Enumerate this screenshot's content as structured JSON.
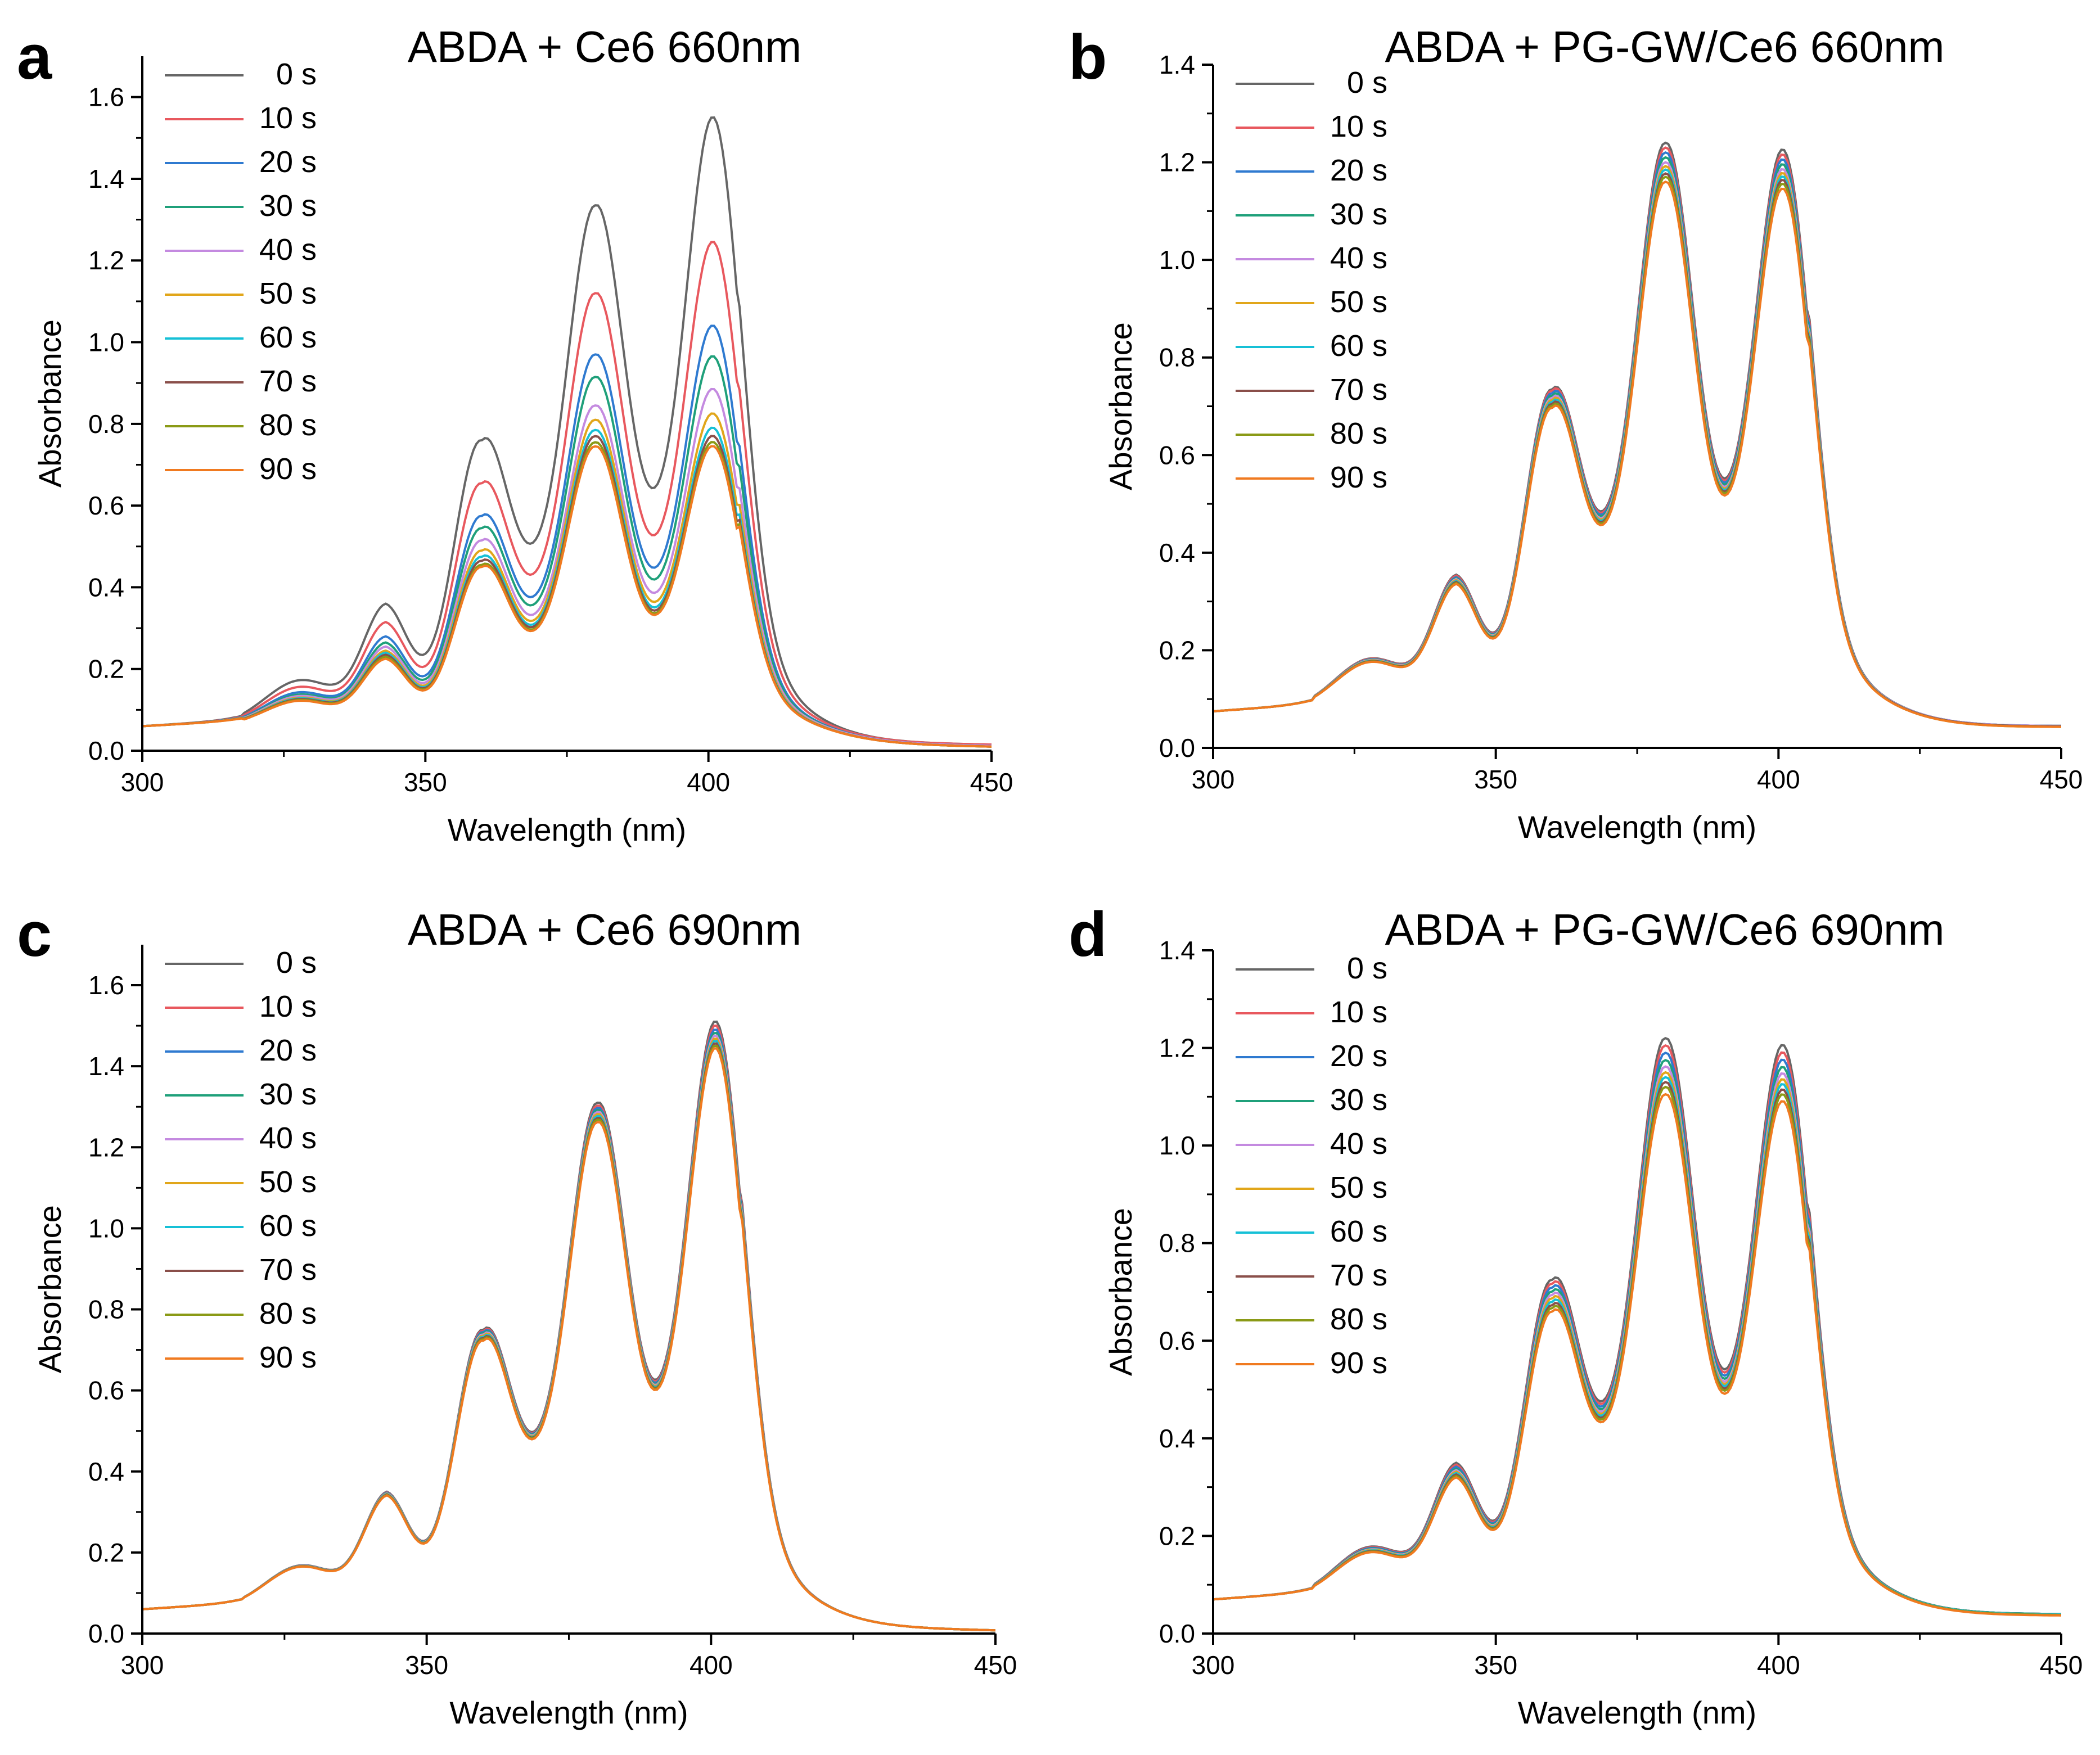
{
  "chart_data": [
    {
      "type": "line",
      "panel_label": "a",
      "title": "ABDA + Ce6 660nm",
      "xlabel": "Wavelength (nm)",
      "ylabel": "Absorbance",
      "xlim": [
        300,
        450
      ],
      "ylim": [
        0,
        1.7
      ],
      "xticks": [
        300,
        350,
        400,
        450
      ],
      "yticks": [
        0.0,
        0.2,
        0.4,
        0.6,
        0.8,
        1.0,
        1.2,
        1.4,
        1.6
      ],
      "ytick_labels": [
        "0.0",
        "0.2",
        "0.4",
        "0.6",
        "0.8",
        "1.0",
        "1.2",
        "1.4",
        "1.6"
      ],
      "legend_position": "top-left",
      "peak_wavelengths": [
        343,
        360,
        380,
        401
      ],
      "series": [
        {
          "name": "0 s",
          "color": "#666666",
          "peaks": [
            0.36,
            0.76,
            1.335,
            1.55
          ],
          "tail": 0.06,
          "end": 0.015
        },
        {
          "name": "10 s",
          "color": "#e8585e",
          "peaks": [
            0.315,
            0.655,
            1.12,
            1.245
          ],
          "tail": 0.06,
          "end": 0.015
        },
        {
          "name": "20 s",
          "color": "#2f7ad0",
          "peaks": [
            0.28,
            0.575,
            0.97,
            1.04
          ],
          "tail": 0.06,
          "end": 0.012
        },
        {
          "name": "30 s",
          "color": "#1fa07a",
          "peaks": [
            0.265,
            0.545,
            0.915,
            0.965
          ],
          "tail": 0.06,
          "end": 0.012
        },
        {
          "name": "40 s",
          "color": "#c48ae0",
          "peaks": [
            0.255,
            0.515,
            0.845,
            0.885
          ],
          "tail": 0.06,
          "end": 0.012
        },
        {
          "name": "50 s",
          "color": "#e1a61a",
          "peaks": [
            0.245,
            0.49,
            0.81,
            0.825
          ],
          "tail": 0.06,
          "end": 0.01
        },
        {
          "name": "60 s",
          "color": "#16c0d6",
          "peaks": [
            0.24,
            0.475,
            0.785,
            0.79
          ],
          "tail": 0.06,
          "end": 0.01
        },
        {
          "name": "70 s",
          "color": "#8a4f4a",
          "peaks": [
            0.235,
            0.465,
            0.77,
            0.77
          ],
          "tail": 0.06,
          "end": 0.01
        },
        {
          "name": "80 s",
          "color": "#8a9a16",
          "peaks": [
            0.23,
            0.455,
            0.755,
            0.755
          ],
          "tail": 0.06,
          "end": 0.01
        },
        {
          "name": "90 s",
          "color": "#f07a20",
          "peaks": [
            0.225,
            0.45,
            0.745,
            0.745
          ],
          "tail": 0.06,
          "end": 0.01
        }
      ]
    },
    {
      "type": "line",
      "panel_label": "b",
      "title": "ABDA + PG-GW/Ce6 660nm",
      "xlabel": "Wavelength (nm)",
      "ylabel": "Absorbance",
      "xlim": [
        300,
        450
      ],
      "ylim": [
        0,
        1.4
      ],
      "xticks": [
        300,
        350,
        400,
        450
      ],
      "yticks": [
        0.0,
        0.2,
        0.4,
        0.6,
        0.8,
        1.0,
        1.2,
        1.4
      ],
      "ytick_labels": [
        "0.0",
        "0.2",
        "0.4",
        "0.6",
        "0.8",
        "1.0",
        "1.2",
        "1.4"
      ],
      "legend_position": "top-left",
      "peak_wavelengths": [
        343,
        360,
        380,
        401
      ],
      "series": [
        {
          "name": "0 s",
          "color": "#666666",
          "peaks": [
            0.355,
            0.735,
            1.24,
            1.225
          ],
          "tail": 0.075,
          "end": 0.045
        },
        {
          "name": "10 s",
          "color": "#e8585e",
          "peaks": [
            0.353,
            0.732,
            1.23,
            1.215
          ],
          "tail": 0.075,
          "end": 0.045
        },
        {
          "name": "20 s",
          "color": "#2f7ad0",
          "peaks": [
            0.35,
            0.727,
            1.22,
            1.205
          ],
          "tail": 0.075,
          "end": 0.045
        },
        {
          "name": "30 s",
          "color": "#1fa07a",
          "peaks": [
            0.348,
            0.722,
            1.21,
            1.195
          ],
          "tail": 0.075,
          "end": 0.045
        },
        {
          "name": "40 s",
          "color": "#c48ae0",
          "peaks": [
            0.346,
            0.717,
            1.2,
            1.185
          ],
          "tail": 0.075,
          "end": 0.045
        },
        {
          "name": "50 s",
          "color": "#e1a61a",
          "peaks": [
            0.344,
            0.713,
            1.192,
            1.177
          ],
          "tail": 0.075,
          "end": 0.044
        },
        {
          "name": "60 s",
          "color": "#16c0d6",
          "peaks": [
            0.342,
            0.709,
            1.185,
            1.17
          ],
          "tail": 0.075,
          "end": 0.044
        },
        {
          "name": "70 s",
          "color": "#8a4f4a",
          "peaks": [
            0.34,
            0.705,
            1.177,
            1.163
          ],
          "tail": 0.075,
          "end": 0.044
        },
        {
          "name": "80 s",
          "color": "#8a9a16",
          "peaks": [
            0.338,
            0.701,
            1.17,
            1.155
          ],
          "tail": 0.075,
          "end": 0.043
        },
        {
          "name": "90 s",
          "color": "#f07a20",
          "peaks": [
            0.336,
            0.697,
            1.16,
            1.145
          ],
          "tail": 0.075,
          "end": 0.043
        }
      ]
    },
    {
      "type": "line",
      "panel_label": "c",
      "title": "ABDA + Ce6 690nm",
      "xlabel": "Wavelength (nm)",
      "ylabel": "Absorbance",
      "xlim": [
        300,
        450
      ],
      "ylim": [
        0,
        1.7
      ],
      "xticks": [
        300,
        350,
        400,
        450
      ],
      "yticks": [
        0.0,
        0.2,
        0.4,
        0.6,
        0.8,
        1.0,
        1.2,
        1.4,
        1.6
      ],
      "ytick_labels": [
        "0.0",
        "0.2",
        "0.4",
        "0.6",
        "0.8",
        "1.0",
        "1.2",
        "1.4",
        "1.6"
      ],
      "legend_position": "top-left",
      "peak_wavelengths": [
        343,
        360,
        380,
        401
      ],
      "series": [
        {
          "name": "0 s",
          "color": "#666666",
          "peaks": [
            0.35,
            0.75,
            1.31,
            1.51
          ],
          "tail": 0.06,
          "end": 0.008
        },
        {
          "name": "10 s",
          "color": "#e8585e",
          "peaks": [
            0.349,
            0.747,
            1.303,
            1.5
          ],
          "tail": 0.06,
          "end": 0.008
        },
        {
          "name": "20 s",
          "color": "#2f7ad0",
          "peaks": [
            0.348,
            0.744,
            1.297,
            1.49
          ],
          "tail": 0.06,
          "end": 0.008
        },
        {
          "name": "30 s",
          "color": "#1fa07a",
          "peaks": [
            0.347,
            0.741,
            1.292,
            1.482
          ],
          "tail": 0.06,
          "end": 0.008
        },
        {
          "name": "40 s",
          "color": "#c48ae0",
          "peaks": [
            0.346,
            0.738,
            1.287,
            1.475
          ],
          "tail": 0.06,
          "end": 0.008
        },
        {
          "name": "50 s",
          "color": "#e1a61a",
          "peaks": [
            0.345,
            0.735,
            1.282,
            1.468
          ],
          "tail": 0.06,
          "end": 0.008
        },
        {
          "name": "60 s",
          "color": "#16c0d6",
          "peaks": [
            0.344,
            0.732,
            1.277,
            1.462
          ],
          "tail": 0.06,
          "end": 0.008
        },
        {
          "name": "70 s",
          "color": "#8a4f4a",
          "peaks": [
            0.343,
            0.729,
            1.272,
            1.456
          ],
          "tail": 0.06,
          "end": 0.008
        },
        {
          "name": "80 s",
          "color": "#8a9a16",
          "peaks": [
            0.342,
            0.726,
            1.268,
            1.45
          ],
          "tail": 0.06,
          "end": 0.008
        },
        {
          "name": "90 s",
          "color": "#f07a20",
          "peaks": [
            0.341,
            0.723,
            1.262,
            1.444
          ],
          "tail": 0.06,
          "end": 0.008
        }
      ]
    },
    {
      "type": "line",
      "panel_label": "d",
      "title": "ABDA + PG-GW/Ce6 690nm",
      "xlabel": "Wavelength (nm)",
      "ylabel": "Absorbance",
      "xlim": [
        300,
        450
      ],
      "ylim": [
        0,
        1.4
      ],
      "xticks": [
        300,
        350,
        400,
        450
      ],
      "yticks": [
        0.0,
        0.2,
        0.4,
        0.6,
        0.8,
        1.0,
        1.2,
        1.4
      ],
      "ytick_labels": [
        "0.0",
        "0.2",
        "0.4",
        "0.6",
        "0.8",
        "1.0",
        "1.2",
        "1.4"
      ],
      "legend_position": "top-left",
      "peak_wavelengths": [
        343,
        360,
        380,
        401
      ],
      "series": [
        {
          "name": "0 s",
          "color": "#666666",
          "peaks": [
            0.35,
            0.725,
            1.22,
            1.205
          ],
          "tail": 0.07,
          "end": 0.04
        },
        {
          "name": "10 s",
          "color": "#e8585e",
          "peaks": [
            0.346,
            0.717,
            1.205,
            1.19
          ],
          "tail": 0.07,
          "end": 0.04
        },
        {
          "name": "20 s",
          "color": "#2f7ad0",
          "peaks": [
            0.342,
            0.709,
            1.19,
            1.175
          ],
          "tail": 0.07,
          "end": 0.04
        },
        {
          "name": "30 s",
          "color": "#1fa07a",
          "peaks": [
            0.338,
            0.701,
            1.175,
            1.16
          ],
          "tail": 0.07,
          "end": 0.04
        },
        {
          "name": "40 s",
          "color": "#c48ae0",
          "peaks": [
            0.335,
            0.694,
            1.162,
            1.147
          ],
          "tail": 0.07,
          "end": 0.039
        },
        {
          "name": "50 s",
          "color": "#e1a61a",
          "peaks": [
            0.332,
            0.687,
            1.15,
            1.135
          ],
          "tail": 0.07,
          "end": 0.039
        },
        {
          "name": "60 s",
          "color": "#16c0d6",
          "peaks": [
            0.329,
            0.68,
            1.14,
            1.125
          ],
          "tail": 0.07,
          "end": 0.039
        },
        {
          "name": "70 s",
          "color": "#8a4f4a",
          "peaks": [
            0.326,
            0.673,
            1.13,
            1.114
          ],
          "tail": 0.07,
          "end": 0.038
        },
        {
          "name": "80 s",
          "color": "#8a9a16",
          "peaks": [
            0.323,
            0.667,
            1.12,
            1.104
          ],
          "tail": 0.07,
          "end": 0.038
        },
        {
          "name": "90 s",
          "color": "#f07a20",
          "peaks": [
            0.32,
            0.66,
            1.105,
            1.09
          ],
          "tail": 0.07,
          "end": 0.037
        }
      ]
    }
  ]
}
